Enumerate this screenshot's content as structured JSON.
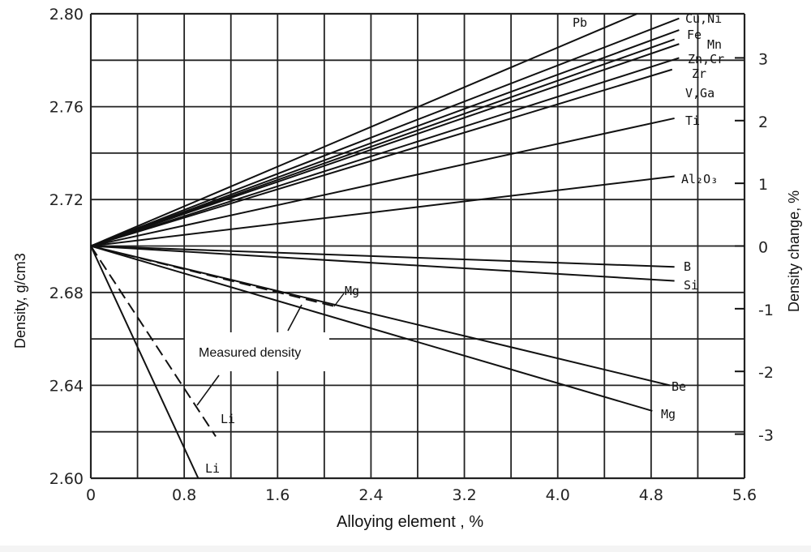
{
  "chart_data": {
    "type": "line",
    "xlabel": "Alloying element , %",
    "ylabel": "Density, g/cm3",
    "y2label": "Density change, %",
    "xlim": [
      0,
      5.6
    ],
    "ylim": [
      2.6,
      2.8
    ],
    "x_ticks": [
      "0",
      "0.8",
      "1.6",
      "2.4",
      "3.2",
      "4.0",
      "4.8",
      "5.6"
    ],
    "y_ticks": [
      "2.60",
      "2.64",
      "2.68",
      "2.72",
      "2.76",
      "2.80"
    ],
    "y2_ticks": [
      "-3",
      "-2",
      "-1",
      "0",
      "1",
      "2",
      "3"
    ],
    "grid": true,
    "annotation": "Measured density",
    "series": [
      {
        "name": "Pb",
        "style": "solid",
        "points": [
          [
            0,
            2.7
          ],
          [
            4.68,
            2.8
          ]
        ]
      },
      {
        "name": "Cu, Ni",
        "style": "solid",
        "points": [
          [
            0,
            2.7
          ],
          [
            5.04,
            2.798
          ]
        ]
      },
      {
        "name": "Fe",
        "style": "solid",
        "points": [
          [
            0,
            2.7
          ],
          [
            5.04,
            2.793
          ]
        ]
      },
      {
        "name": "Mn",
        "style": "solid",
        "points": [
          [
            0,
            2.7
          ],
          [
            5.0,
            2.789
          ]
        ]
      },
      {
        "name": "Zn, Cr",
        "style": "solid",
        "points": [
          [
            0,
            2.7
          ],
          [
            5.04,
            2.787
          ]
        ]
      },
      {
        "name": "Zr",
        "style": "solid",
        "points": [
          [
            0,
            2.7
          ],
          [
            5.04,
            2.781
          ]
        ]
      },
      {
        "name": "V, Ga",
        "style": "solid",
        "points": [
          [
            0,
            2.7
          ],
          [
            4.98,
            2.776
          ]
        ]
      },
      {
        "name": "Ti",
        "style": "solid",
        "points": [
          [
            0,
            2.7
          ],
          [
            5.0,
            2.755
          ]
        ]
      },
      {
        "name": "Al2O3",
        "style": "solid",
        "points": [
          [
            0,
            2.7
          ],
          [
            5.0,
            2.73
          ]
        ]
      },
      {
        "name": "B",
        "style": "solid",
        "points": [
          [
            0,
            2.7
          ],
          [
            5.0,
            2.691
          ]
        ]
      },
      {
        "name": "Si",
        "style": "solid",
        "points": [
          [
            0,
            2.7
          ],
          [
            5.0,
            2.685
          ]
        ]
      },
      {
        "name": "Be",
        "style": "solid",
        "points": [
          [
            0,
            2.7
          ],
          [
            4.96,
            2.64
          ]
        ]
      },
      {
        "name": "Mg",
        "style": "solid",
        "points": [
          [
            0,
            2.7
          ],
          [
            4.81,
            2.629
          ]
        ]
      },
      {
        "name": "Mg",
        "style": "dashed",
        "points": [
          [
            0,
            2.7
          ],
          [
            2.09,
            2.674
          ]
        ]
      },
      {
        "name": "Li",
        "style": "dashed",
        "points": [
          [
            0,
            2.7
          ],
          [
            1.07,
            2.618
          ]
        ]
      },
      {
        "name": "Li",
        "style": "solid",
        "points": [
          [
            0,
            2.7
          ],
          [
            0.92,
            2.6
          ]
        ]
      }
    ]
  }
}
